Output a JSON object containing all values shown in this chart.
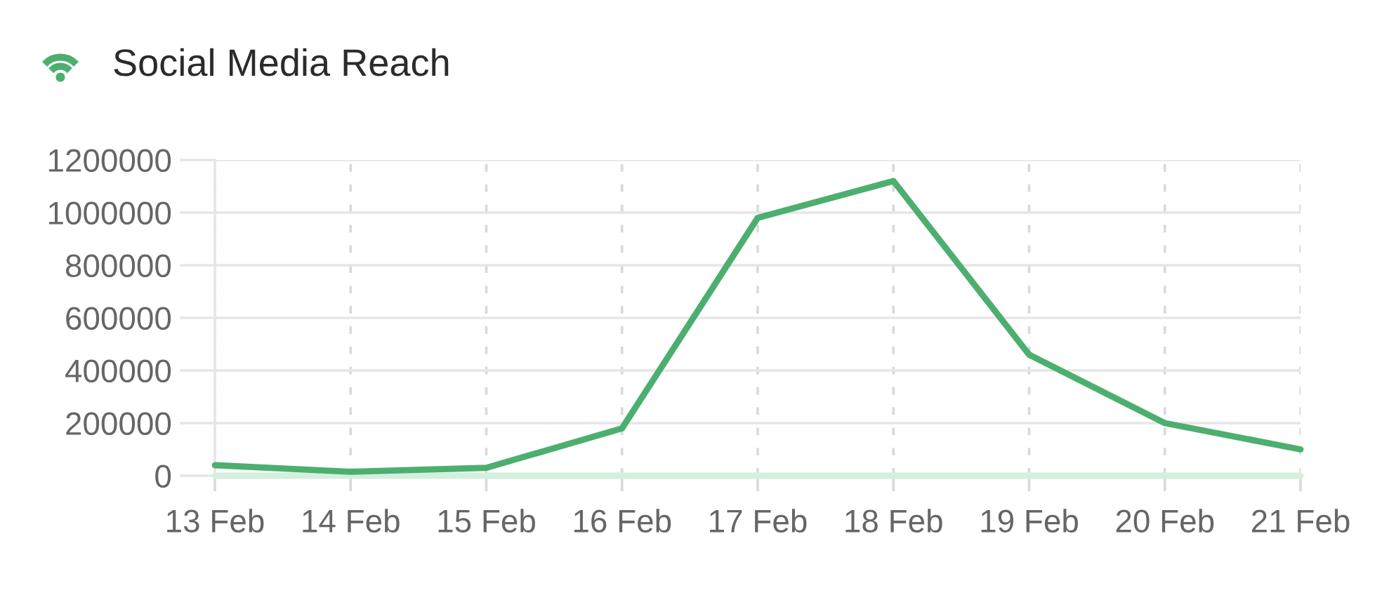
{
  "chart_data": {
    "type": "line",
    "title": "Social Media Reach",
    "categories": [
      "13 Feb",
      "14 Feb",
      "15 Feb",
      "16 Feb",
      "17 Feb",
      "18 Feb",
      "19 Feb",
      "20 Feb",
      "21 Feb"
    ],
    "series": [
      {
        "color": "#4caf6f",
        "values": [
          40000,
          15000,
          30000,
          180000,
          980000,
          1120000,
          460000,
          200000,
          100000
        ]
      },
      {
        "color": "#d3efdd",
        "values": [
          0,
          0,
          0,
          0,
          0,
          0,
          0,
          0,
          0
        ]
      }
    ],
    "ylim": [
      0,
      1200000
    ],
    "yticks": [
      0,
      200000,
      400000,
      600000,
      800000,
      1000000,
      1200000
    ],
    "grid": true,
    "line_style": "solid"
  }
}
